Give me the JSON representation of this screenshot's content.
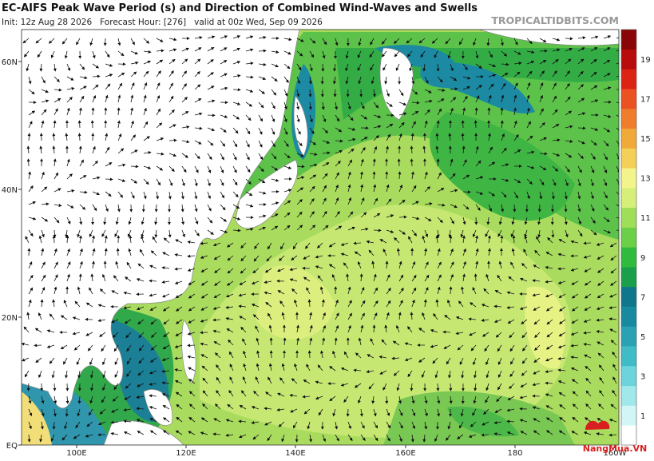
{
  "header": {
    "title": "EC-AIFS Peak Wave Period (s) and Direction of Combined Wind-Waves and Swells",
    "init_line": "Init: 12z Aug 28 2026   Forecast Hour: [276]   valid at 00z Wed, Sep 09 2026",
    "site": "TROPICALTIDBITS.COM"
  },
  "map": {
    "lat_labels": [
      "60N",
      "40N",
      "20N",
      "EQ"
    ],
    "lon_labels": [
      "100E",
      "120E",
      "140E",
      "160E",
      "180",
      "160W"
    ]
  },
  "colorbar": {
    "labels": [
      "19",
      "17",
      "15",
      "13",
      "11",
      "9",
      "7",
      "5",
      "3",
      "1"
    ]
  },
  "watermark": "NangMua.VN"
}
